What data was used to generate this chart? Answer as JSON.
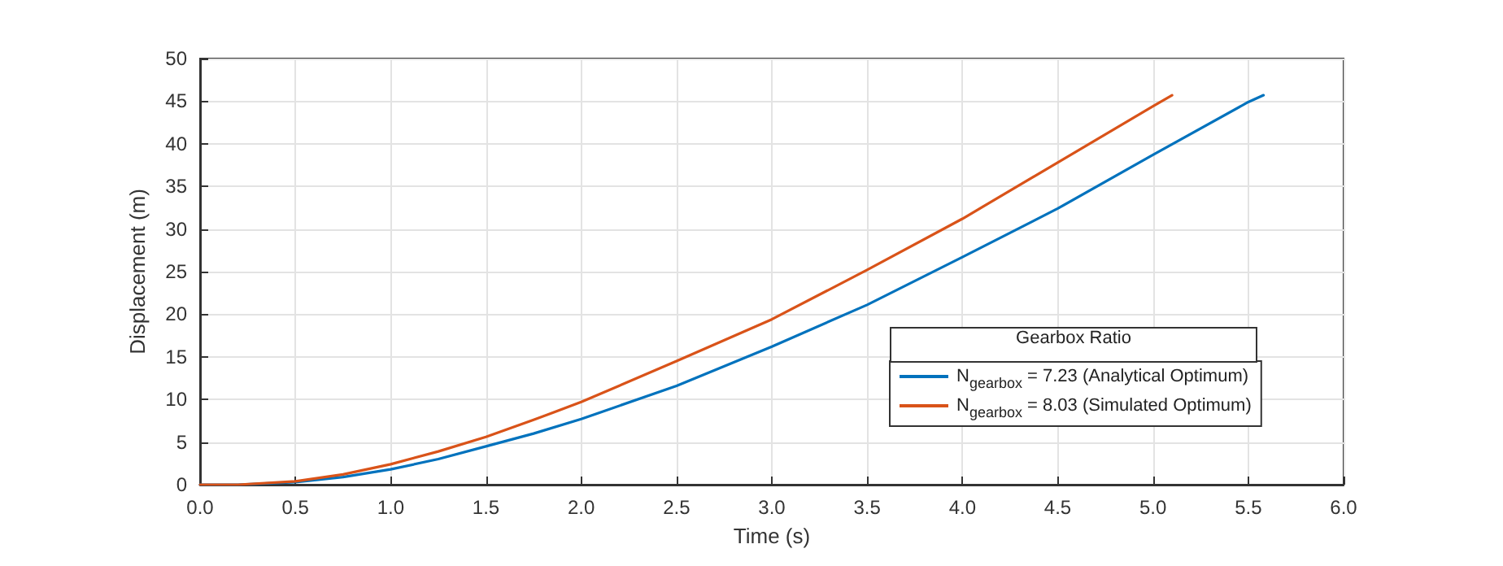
{
  "chart_data": {
    "type": "line",
    "xlabel": "Time (s)",
    "ylabel": "Displacement (m)",
    "legend_title": "Gearbox Ratio",
    "series": [
      {
        "name": "N$_{gearbox}$ = 7.23 (Analytical Optimum)",
        "color": "#0072bd",
        "x": [
          0,
          0.2,
          0.5,
          0.75,
          1.0,
          1.25,
          1.5,
          1.75,
          2.0,
          2.5,
          3.0,
          3.5,
          4.0,
          4.5,
          5.0,
          5.5,
          5.58
        ],
        "values": [
          0,
          0,
          0.3,
          0.9,
          1.8,
          3.0,
          4.5,
          6.0,
          7.7,
          11.6,
          16.2,
          21.1,
          26.7,
          32.4,
          38.7,
          44.9,
          45.7
        ]
      },
      {
        "name": "N$_{gearbox}$ = 8.03 (Simulated Optimum)",
        "color": "#d95319",
        "x": [
          0,
          0.2,
          0.5,
          0.75,
          1.0,
          1.25,
          1.5,
          1.75,
          2.0,
          2.5,
          3.0,
          3.5,
          4.0,
          4.5,
          5.0,
          5.1
        ],
        "values": [
          0,
          0,
          0.4,
          1.2,
          2.4,
          3.9,
          5.6,
          7.6,
          9.7,
          14.5,
          19.4,
          25.2,
          31.2,
          37.8,
          44.4,
          45.7
        ]
      }
    ],
    "xlim": [
      0,
      6
    ],
    "xticks": [
      {
        "value": 0,
        "label": "0.0"
      },
      {
        "value": 0.5,
        "label": "0.5"
      },
      {
        "value": 1,
        "label": "1.0"
      },
      {
        "value": 1.5,
        "label": "1.5"
      },
      {
        "value": 2,
        "label": "2.0"
      },
      {
        "value": 2.5,
        "label": "2.5"
      },
      {
        "value": 3,
        "label": "3.0"
      },
      {
        "value": 3.5,
        "label": "3.5"
      },
      {
        "value": 4,
        "label": "4.0"
      },
      {
        "value": 4.5,
        "label": "4.5"
      },
      {
        "value": 5,
        "label": "5.0"
      },
      {
        "value": 5.5,
        "label": "5.5"
      },
      {
        "value": 6,
        "label": "6.0"
      }
    ],
    "ylim": [
      0,
      50
    ],
    "yticks": [
      0,
      5,
      10,
      15,
      20,
      25,
      30,
      35,
      40,
      45,
      50
    ],
    "grid": true,
    "legend": "bottom right",
    "marker": "none",
    "line_style": "solid"
  }
}
